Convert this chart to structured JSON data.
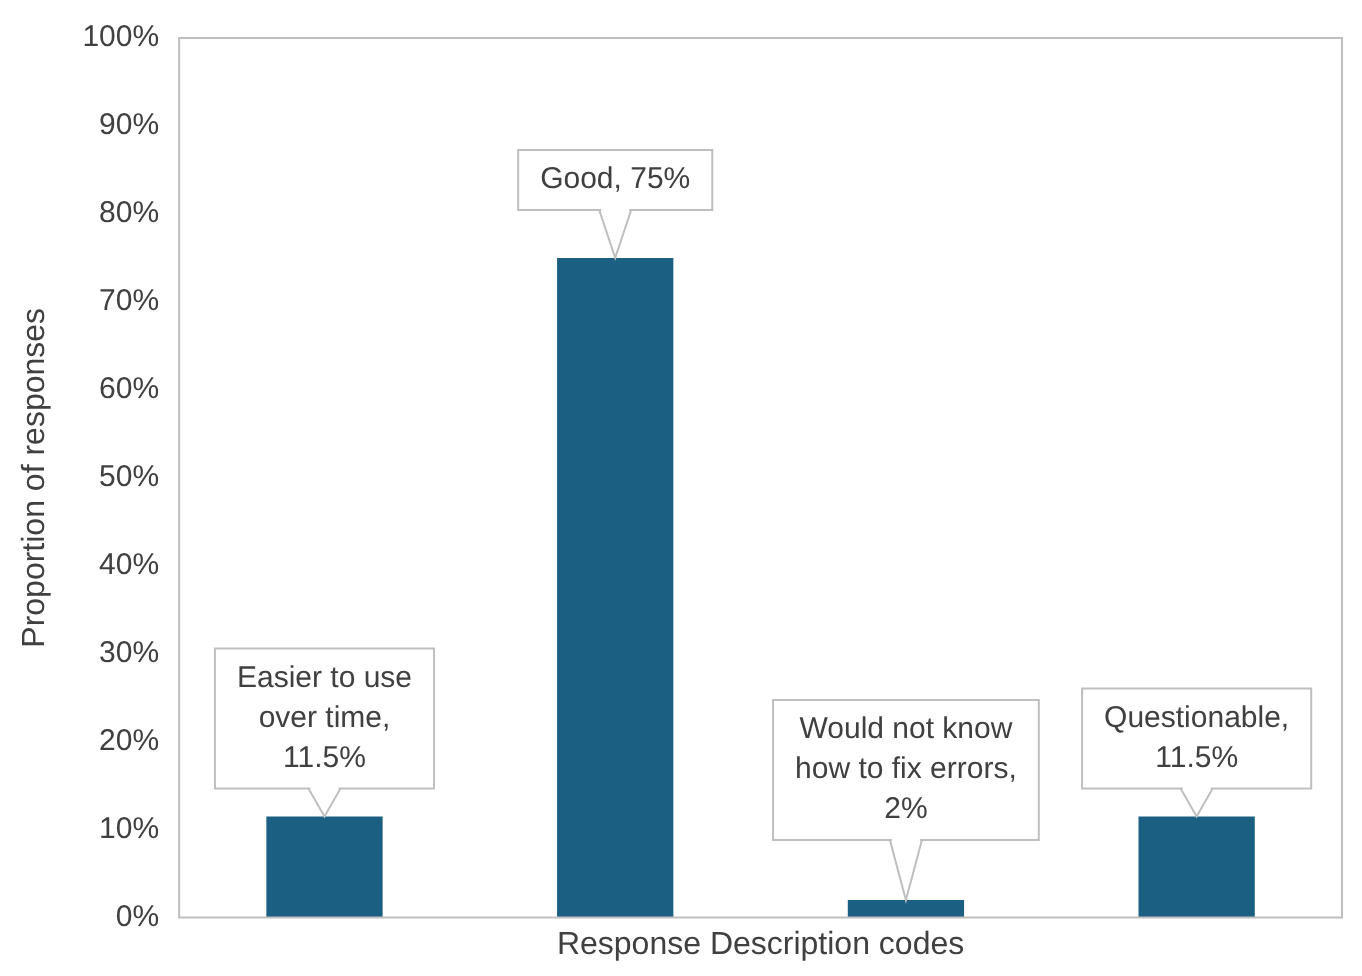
{
  "chart_data": {
    "type": "bar",
    "xlabel": "Response Description codes",
    "ylabel": "Proportion of responses",
    "categories": [
      null,
      null,
      null,
      null
    ],
    "values": [
      11.5,
      75,
      2,
      11.5
    ],
    "color": "#1b5f82",
    "value_labels": [
      "Easier to use over time, 11.5%",
      "Good, 75%",
      "Would not know how to fix errors, 2%",
      "Questionable, 11.5%"
    ],
    "ylim": [
      0,
      100
    ],
    "yticks": [
      {
        "value": 0,
        "label": "0%"
      },
      {
        "value": 10,
        "label": "10%"
      },
      {
        "value": 20,
        "label": "20%"
      },
      {
        "value": 30,
        "label": "30%"
      },
      {
        "value": 40,
        "label": "40%"
      },
      {
        "value": 50,
        "label": "50%"
      },
      {
        "value": 60,
        "label": "60%"
      },
      {
        "value": 70,
        "label": "70%"
      },
      {
        "value": 80,
        "label": "80%"
      },
      {
        "value": 90,
        "label": "90%"
      },
      {
        "value": 100,
        "label": "100%"
      }
    ],
    "grid": false,
    "legend": false
  }
}
